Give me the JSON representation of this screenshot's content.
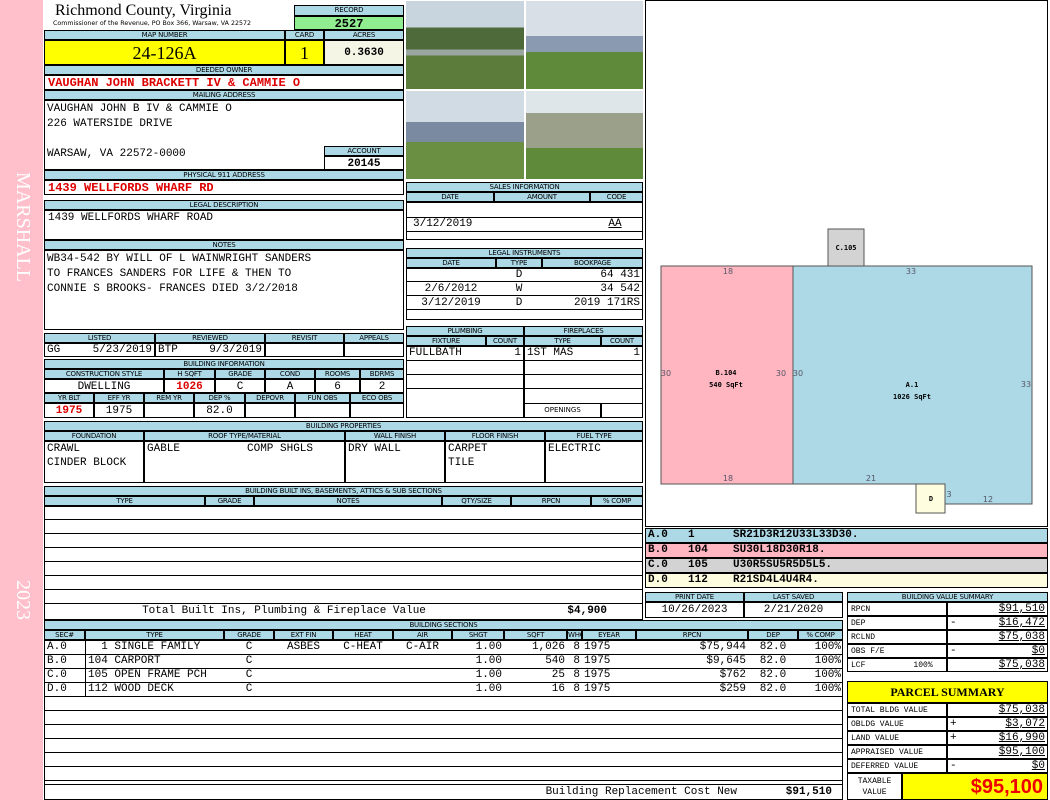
{
  "sidebar": {
    "district": "MARSHALL",
    "year": "2023"
  },
  "header": {
    "county": "Richmond County, Virginia",
    "subtitle": "Commissioner of the Revenue, PO Box 366, Warsaw, VA 22572"
  },
  "record": {
    "label": "RECORD",
    "value": "2527"
  },
  "parcel": {
    "map_label": "MAP NUMBER",
    "map": "24-126A",
    "card_label": "CARD",
    "card": "1",
    "acres_label": "ACRES",
    "acres": "0.3630"
  },
  "owner": {
    "label": "DEEDED OWNER",
    "value": "VAUGHAN JOHN BRACKETT IV & CAMMIE O"
  },
  "mailing": {
    "label": "MAILING ADDRESS",
    "lines": [
      "VAUGHAN JOHN B IV & CAMMIE O",
      "226 WATERSIDE DRIVE",
      "WARSAW, VA 22572-0000"
    ]
  },
  "account": {
    "label": "ACCOUNT",
    "value": "20145"
  },
  "physical": {
    "label": "PHYSICAL 911 ADDRESS",
    "value": "1439 WELLFORDS WHARF RD"
  },
  "legal": {
    "label": "LEGAL DESCRIPTION",
    "value": "1439 WELLFORDS WHARF ROAD"
  },
  "notes": {
    "label": "NOTES",
    "lines": [
      "WB34-542 BY WILL OF L WAINWRIGHT SANDERS",
      "TO FRANCES SANDERS FOR LIFE & THEN TO",
      "CONNIE S BROOKS- FRANCES DIED 3/2/2018"
    ]
  },
  "sales": {
    "label": "SALES INFORMATION",
    "cols": [
      "DATE",
      "AMOUNT",
      "CODE"
    ],
    "rows": [
      {
        "date": "3/12/2019",
        "amount": "",
        "code": "AA"
      }
    ]
  },
  "instruments": {
    "label": "LEGAL INSTRUMENTS",
    "cols": [
      "DATE",
      "TYPE",
      "BOOKPAGE"
    ],
    "rows": [
      {
        "date": "",
        "type": "D",
        "book": "64 431"
      },
      {
        "date": "2/6/2012",
        "type": "W",
        "book": "34 542"
      },
      {
        "date": "3/12/2019",
        "type": "D",
        "book": "2019 171RS"
      }
    ]
  },
  "review": {
    "cols": [
      "LISTED",
      "REVIEWED",
      "REVISIT",
      "APPEALS"
    ],
    "listed_by": "GG",
    "listed_date": "5/23/2019",
    "reviewed_by": "BTP",
    "reviewed_date": "9/3/2019"
  },
  "building_info": {
    "label": "BUILDING INFORMATION",
    "cols1": [
      "CONSTRUCTION STYLE",
      "H SQFT",
      "GRADE",
      "COND",
      "ROOMS",
      "BDRMS"
    ],
    "vals1": [
      "DWELLING",
      "1026",
      "C",
      "A",
      "6",
      "2"
    ],
    "cols2": [
      "YR BLT",
      "EFF YR",
      "REM YR",
      "DEP %",
      "DEPOVR",
      "FUN OBS",
      "ECO OBS"
    ],
    "vals2": [
      "1975",
      "1975",
      "",
      "82.0",
      "",
      "",
      ""
    ]
  },
  "plumbing": {
    "label": "PLUMBING",
    "cols": [
      "FIXTURE",
      "COUNT"
    ],
    "rows": [
      {
        "fixture": "FULLBATH",
        "count": "1"
      }
    ]
  },
  "fireplaces": {
    "label": "FIREPLACES",
    "cols": [
      "TYPE",
      "COUNT"
    ],
    "rows": [
      {
        "type": "1ST MAS",
        "count": "1"
      }
    ],
    "openings_label": "OPENINGS"
  },
  "properties": {
    "label": "BUILDING PROPERTIES",
    "cols": [
      "FOUNDATION",
      "ROOF TYPE/MATERIAL",
      "WALL FINISH",
      "FLOOR FINISH",
      "FUEL TYPE"
    ],
    "foundation": [
      "CRAWL",
      "CINDER BLOCK"
    ],
    "roof_type": "GABLE",
    "roof_material": "COMP SHGLS",
    "wall": "DRY WALL",
    "floor": [
      "CARPET",
      "TILE"
    ],
    "fuel": "ELECTRIC"
  },
  "builtins": {
    "label": "BUILDING BUILT INS, BASEMENTS, ATTICS & SUB SECTIONS",
    "cols": [
      "TYPE",
      "GRADE",
      "NOTES",
      "QTY/SIZE",
      "RPCN",
      "% COMP"
    ],
    "total_label": "Total Built Ins, Plumbing & Fireplace Value",
    "total": "$4,900"
  },
  "dates": {
    "print_label": "PRINT DATE",
    "print": "10/26/2023",
    "saved_label": "LAST SAVED",
    "saved": "2/21/2020"
  },
  "sections": {
    "label": "BUILDING SECTIONS",
    "cols": [
      "SEC#",
      "TYPE",
      "GRADE",
      "EXT FIN",
      "HEAT",
      "AIR",
      "SHGT",
      "SQFT",
      "WHGT",
      "EYEAR",
      "RPCN",
      "DEP",
      "% COMP"
    ],
    "rows": [
      [
        "A.0",
        "  1 SINGLE FAMILY",
        "C",
        "ASBES",
        "C-HEAT",
        "C-AIR",
        "1.00",
        "1,026",
        "8",
        "1975",
        "$75,944",
        "82.0",
        "100%"
      ],
      [
        "B.0",
        "104 CARPORT",
        "C",
        "",
        "",
        "",
        "1.00",
        "540",
        "8",
        "1975",
        "$9,645",
        "82.0",
        "100%"
      ],
      [
        "C.0",
        "105 OPEN FRAME PCH",
        "C",
        "",
        "",
        "",
        "1.00",
        "25",
        "8",
        "1975",
        "$762",
        "82.0",
        "100%"
      ],
      [
        "D.0",
        "112 WOOD DECK",
        "C",
        "",
        "",
        "",
        "1.00",
        "16",
        "8",
        "1975",
        "$259",
        "82.0",
        "100%"
      ]
    ],
    "rcn_label": "Building Replacement Cost New",
    "rcn": "$91,510"
  },
  "sketch": {
    "areas": {
      "A": "A.1",
      "A_sqft": "1026 SqFt",
      "B": "B.104",
      "B_sqft": "540 SqFt",
      "C": "C.105",
      "D": "D"
    },
    "dims": [
      "18",
      "33",
      "30",
      "30",
      "30",
      "33",
      "18",
      "21",
      "3",
      "12"
    ],
    "colors": {
      "A": "#add8e6",
      "B": "#ffb6c1",
      "C": "#d3d3d3",
      "D": "#fffde0"
    },
    "codes": [
      [
        "A.0",
        "1",
        "SR21D3R12U33L33D30."
      ],
      [
        "B.0",
        "104",
        "SU30L18D30R18."
      ],
      [
        "C.0",
        "105",
        "U30R5SU5R5D5L5."
      ],
      [
        "D.0",
        "112",
        "R21SD4L4U4R4."
      ]
    ]
  },
  "value_summary": {
    "label": "BUILDING VALUE SUMMARY",
    "rows": [
      [
        "RPCN",
        "",
        "$91,510"
      ],
      [
        "DEP",
        "-",
        "$16,472"
      ],
      [
        "RCLND",
        "",
        "$75,038"
      ],
      [
        "OBS F/E",
        "-",
        "$0"
      ],
      [
        "LCF          100%",
        "",
        "$75,038"
      ]
    ]
  },
  "parcel_summary": {
    "label": "PARCEL SUMMARY",
    "rows": [
      [
        "TOTAL BLDG VALUE",
        "",
        "$75,038"
      ],
      [
        "OBLDG VALUE",
        "+",
        "$3,072"
      ],
      [
        "LAND VALUE",
        "+",
        "$16,990"
      ],
      [
        "APPRAISED VALUE",
        "",
        "$95,100"
      ],
      [
        "DEFERRED VALUE",
        "-",
        "$0"
      ]
    ],
    "taxable_label": "TAXABLE\nVALUE",
    "taxable": "$95,100"
  }
}
